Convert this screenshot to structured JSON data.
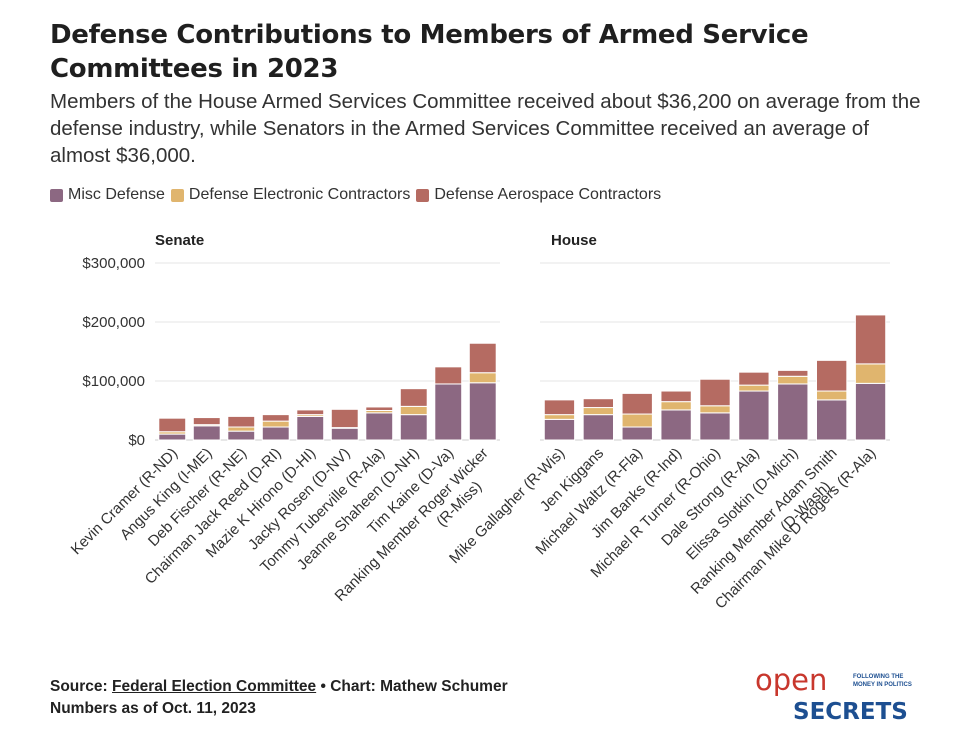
{
  "header": {
    "title": "Defense Contributions to Members of Armed Service Committees in 2023",
    "subtitle": "Members of the House Armed Services Committee received about $36,200 on average from the defense industry, while Senators in the Armed Services Committee received an average of almost $36,000."
  },
  "legend": [
    {
      "label": "Misc Defense",
      "color": "#8c6882"
    },
    {
      "label": "Defense Electronic Contractors",
      "color": "#e0b56e"
    },
    {
      "label": "Defense Aerospace Contractors",
      "color": "#b56b62"
    }
  ],
  "footer": {
    "source_prefix": "Source: ",
    "source_link": "Federal Election Committee",
    "source_suffix": " • Chart: Mathew Schumer",
    "note": "Numbers as of Oct. 11, 2023"
  },
  "logo": {
    "line1": "open",
    "line2": "SECRETS",
    "tagline1": "FOLLOWING THE",
    "tagline2": "MONEY IN POLITICS",
    "colors": {
      "open": "#c8372d",
      "secrets": "#1d4f91"
    }
  },
  "chart_data": [
    {
      "type": "bar",
      "stacked": true,
      "title": "Senate",
      "ylim": [
        0,
        300000
      ],
      "yticks": [
        0,
        100000,
        200000,
        300000
      ],
      "ytick_labels": [
        "$0",
        "$100,000",
        "$200,000",
        "$300,000"
      ],
      "grid": true,
      "categories": [
        "Kevin Cramer (R-ND)",
        "Angus King (I-ME)",
        "Deb Fischer (R-NE)",
        "Chairman Jack Reed (D-RI)",
        "Mazie K Hirono (D-HI)",
        "Jacky Rosen (D-NV)",
        "Tommy Tuberville (R-Ala)",
        "Jeanne Shaheen (D-NH)",
        "Tim Kaine (D-Va)",
        "Ranking Member Roger Wicker (R-Miss)"
      ],
      "series": [
        {
          "name": "Misc Defense",
          "color": "#8c6882",
          "values": [
            10000,
            24000,
            15000,
            22000,
            40000,
            20000,
            46000,
            43000,
            95000,
            97000
          ]
        },
        {
          "name": "Defense Electronic Contractors",
          "color": "#e0b56e",
          "values": [
            4000,
            2000,
            7000,
            10000,
            3000,
            1000,
            4000,
            14000,
            0,
            17000
          ]
        },
        {
          "name": "Defense Aerospace Contractors",
          "color": "#b56b62",
          "values": [
            23000,
            12000,
            18000,
            11000,
            8000,
            31000,
            6000,
            30000,
            29000,
            50000
          ]
        }
      ]
    },
    {
      "type": "bar",
      "stacked": true,
      "title": "House",
      "ylim": [
        0,
        300000
      ],
      "yticks": [
        0,
        100000,
        200000,
        300000
      ],
      "grid": true,
      "categories": [
        "Mike Gallagher (R-Wis)",
        "Jen Kiggans",
        "Michael Waltz (R-Fla)",
        "Jim Banks (R-Ind)",
        "Michael R Turner (R-Ohio)",
        "Dale Strong (R-Ala)",
        "Elissa Slotkin (D-Mich)",
        "Ranking Member Adam Smith (D-Wash)",
        "Chairman Mike D Rogers (R-Ala)"
      ],
      "series": [
        {
          "name": "Misc Defense",
          "color": "#8c6882",
          "values": [
            35000,
            43000,
            22000,
            51000,
            46000,
            83000,
            95000,
            68000,
            96000
          ]
        },
        {
          "name": "Defense Electronic Contractors",
          "color": "#e0b56e",
          "values": [
            8000,
            12000,
            22000,
            14000,
            12000,
            10000,
            13000,
            15000,
            33000
          ]
        },
        {
          "name": "Defense Aerospace Contractors",
          "color": "#b56b62",
          "values": [
            25000,
            15000,
            35000,
            18000,
            45000,
            22000,
            10000,
            52000,
            83000
          ]
        }
      ]
    }
  ]
}
